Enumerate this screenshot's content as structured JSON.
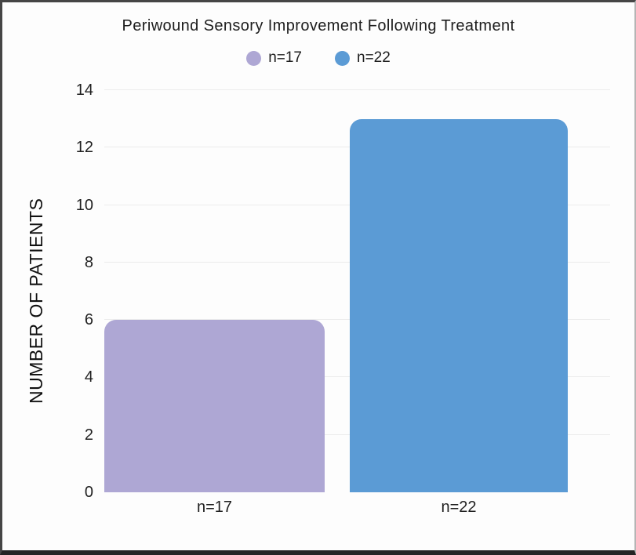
{
  "window": {
    "background": "#fdfdfd",
    "frame_border_color": "#2b2b2b"
  },
  "chart_data": {
    "type": "bar",
    "title": "Periwound Sensory Improvement Following Treatment",
    "xlabel": "",
    "ylabel": "NUMBER OF PATIENTS",
    "categories": [
      "n=17",
      "n=22"
    ],
    "values": [
      6,
      13
    ],
    "bar_colors": [
      "#aea7d4",
      "#5b9bd5"
    ],
    "legend": [
      {
        "label": "n=17",
        "color": "#aea7d4"
      },
      {
        "label": "n=22",
        "color": "#5b9bd5"
      }
    ],
    "legend_position": "top-center",
    "yticks": [
      0,
      2,
      4,
      6,
      8,
      10,
      12,
      14
    ],
    "ylim": [
      0,
      14
    ],
    "grid": true,
    "grid_color": "#ececec",
    "text_color": "#1d1d1d"
  }
}
